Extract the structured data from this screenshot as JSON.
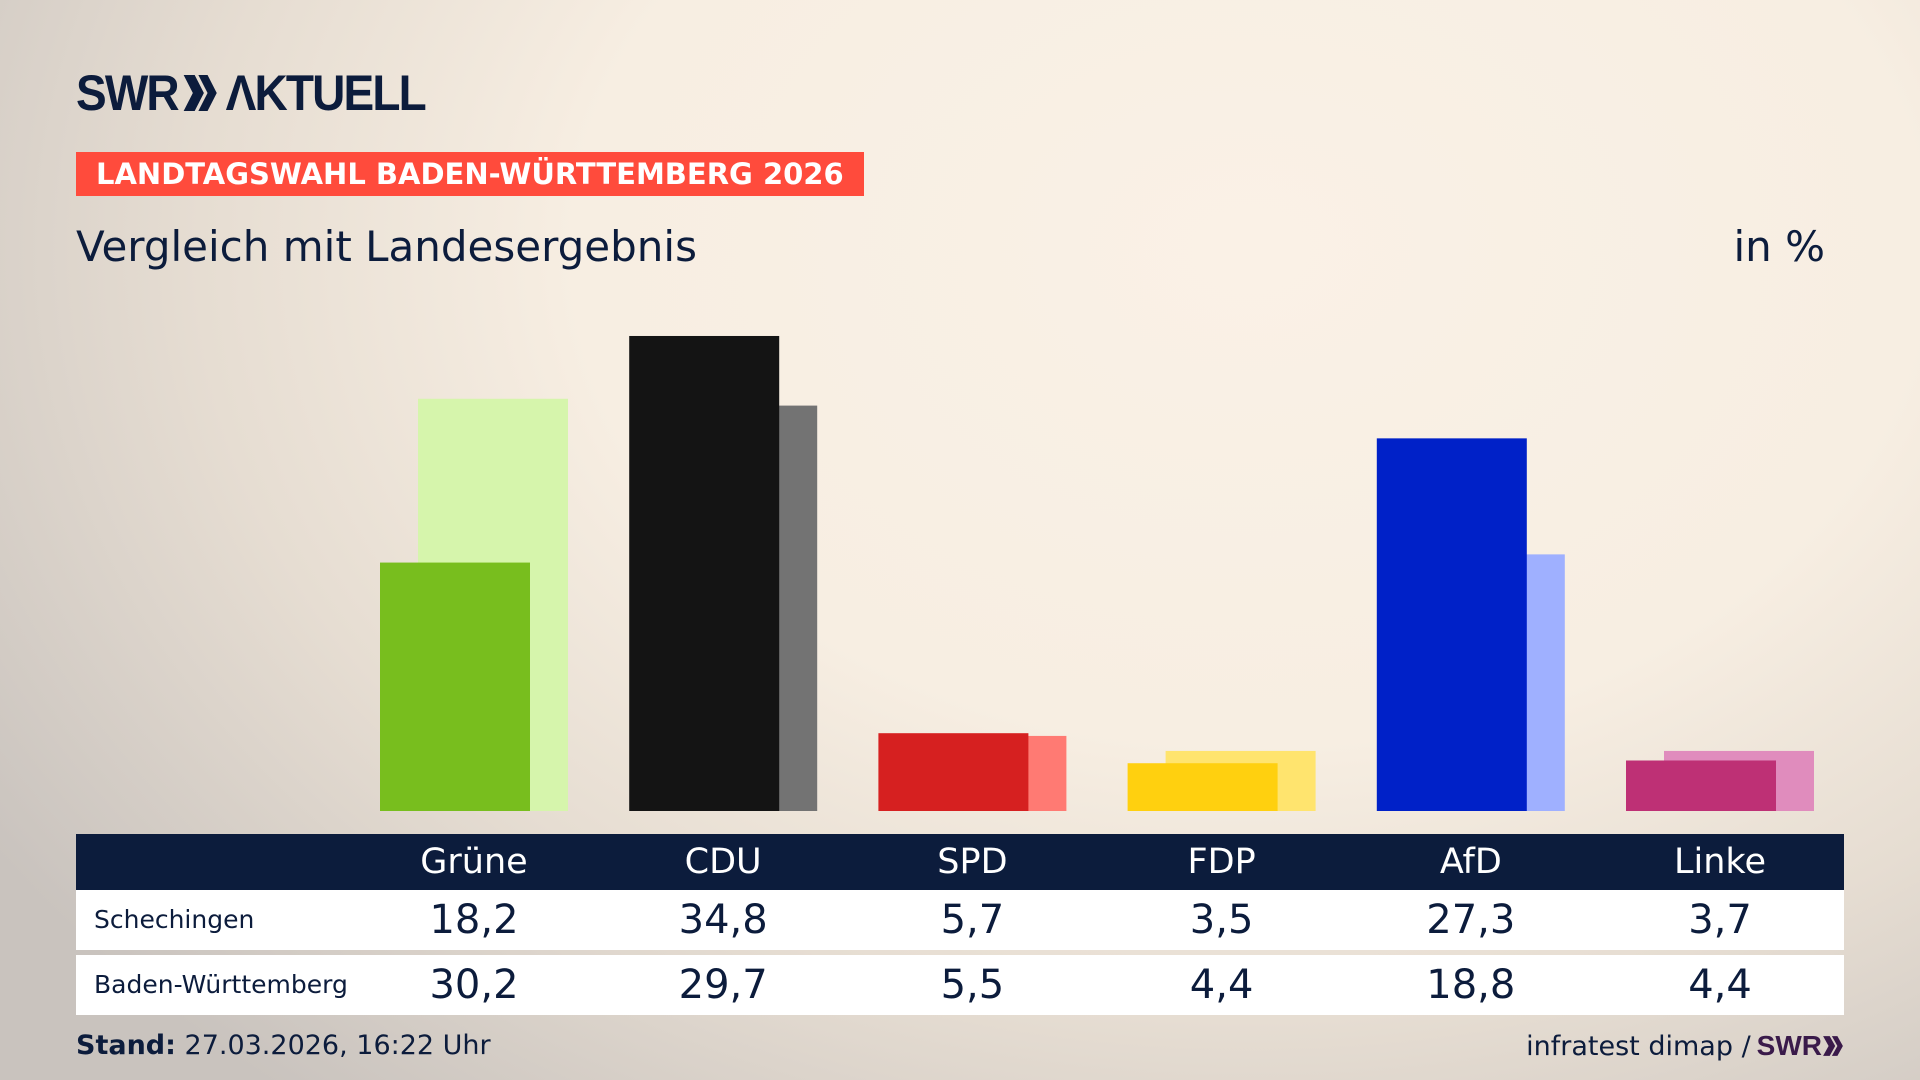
{
  "header": {
    "logo": "SWR AKTUELL",
    "banner": "LANDTAGSWAHL BADEN-WÜRTTEMBERG 2026",
    "subtitle": "Vergleich mit Landesergebnis",
    "unit": "in %"
  },
  "chart_data": {
    "type": "bar",
    "title": "Vergleich mit Landesergebnis",
    "ylabel": "in %",
    "categories": [
      "Grüne",
      "CDU",
      "SPD",
      "FDP",
      "AfD",
      "Linke"
    ],
    "series": [
      {
        "name": "Schechingen",
        "values": [
          18.2,
          34.8,
          5.7,
          3.5,
          27.3,
          3.7
        ],
        "colors": [
          "#78be1e",
          "#141414",
          "#d62020",
          "#ffd00f",
          "#0021c8",
          "#be3075"
        ]
      },
      {
        "name": "Baden-Württemberg",
        "values": [
          30.2,
          29.7,
          5.5,
          4.4,
          18.8,
          4.4
        ],
        "colors": [
          "#d6f5ac",
          "#737373",
          "#ff7a73",
          "#ffe46e",
          "#9fb0ff",
          "#e08cbd"
        ]
      }
    ],
    "display_values": [
      [
        "18,2",
        "34,8",
        "5,7",
        "3,5",
        "27,3",
        "3,7"
      ],
      [
        "30,2",
        "29,7",
        "5,5",
        "4,4",
        "18,8",
        "4,4"
      ]
    ],
    "ylim": [
      0,
      40
    ],
    "grid": false,
    "legend": "table-below"
  },
  "footer": {
    "stand_label": "Stand:",
    "stand_value": "27.03.2026, 16:22 Uhr",
    "source": "infratest dimap /",
    "source_logo": "SWR"
  }
}
